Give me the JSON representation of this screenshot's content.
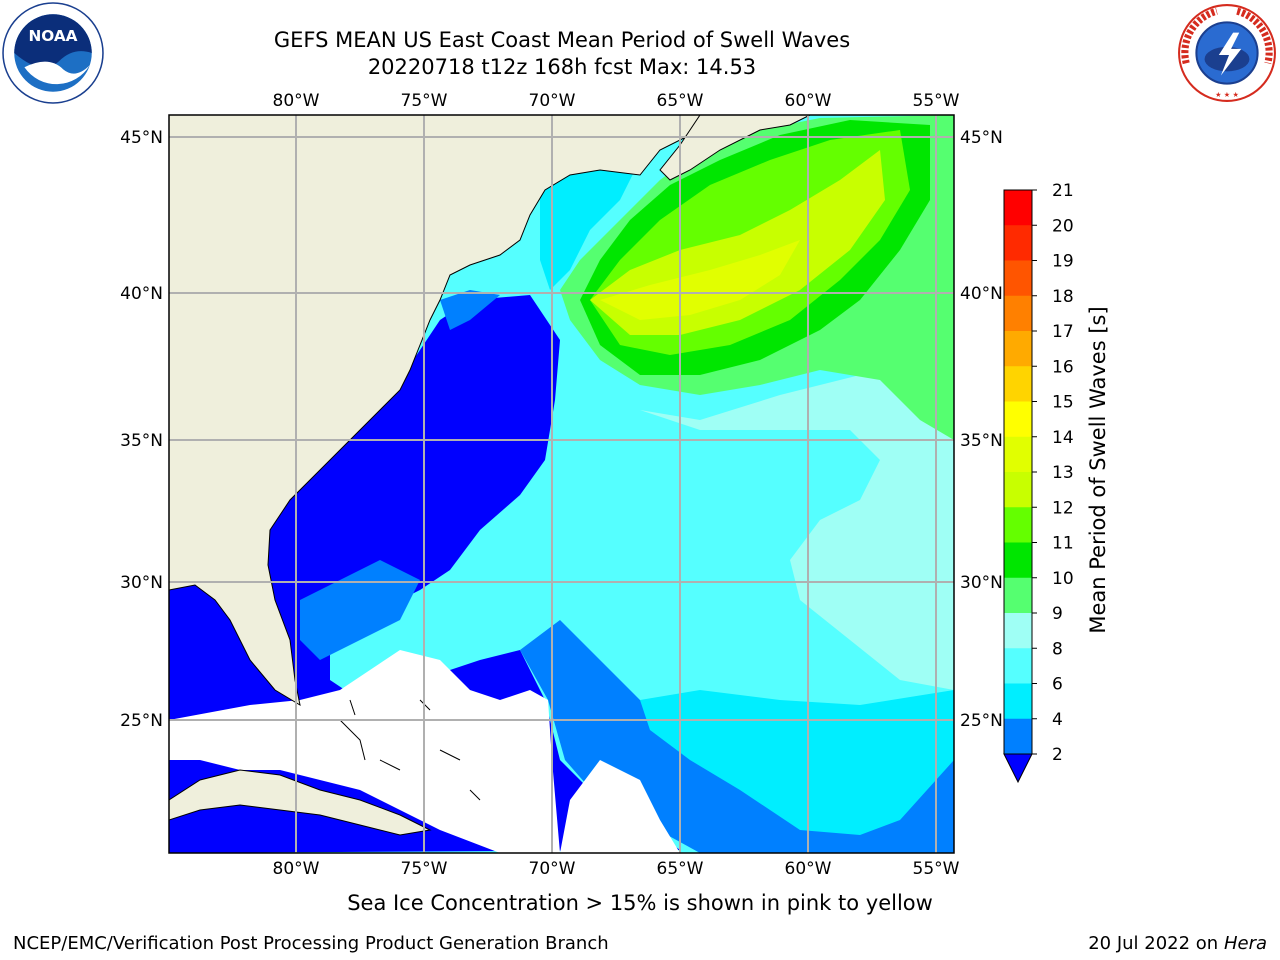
{
  "title": {
    "line1": "GEFS MEAN US East Coast Mean Period of Swell Waves",
    "line2": "20220718 t12z 168h fcst   Max: 14.53"
  },
  "logos": {
    "left": "noaa-logo",
    "right": "national-weather-service-logo",
    "left_text": "NOAA",
    "left_ring_text": "NATIONAL OCEANIC AND ATMOSPHERIC ADMINISTRATION · U.S. DEPARTMENT OF COMMERCE",
    "right_ring_text": "NATIONAL WEATHER SERVICE"
  },
  "map": {
    "lon_ticks": [
      "80°W",
      "75°W",
      "70°W",
      "65°W",
      "60°W",
      "55°W"
    ],
    "lat_ticks": [
      "45°N",
      "40°N",
      "35°N",
      "30°N",
      "25°N"
    ],
    "land_color": "#efefdc",
    "grid_color": "#b0b0b0"
  },
  "colorbar": {
    "label": "Mean Period of Swell Waves [s]",
    "ticks": [
      "21",
      "20",
      "19",
      "18",
      "17",
      "16",
      "15",
      "14",
      "13",
      "12",
      "11",
      "10",
      "9",
      "8",
      "6",
      "4",
      "2"
    ],
    "colors": [
      "#ff0000",
      "#ff2a00",
      "#ff5500",
      "#ff8000",
      "#ffaa00",
      "#ffd400",
      "#ffff00",
      "#e1ff00",
      "#c8ff00",
      "#64ff00",
      "#00e600",
      "#55ff70",
      "#9ffff5",
      "#55ffff",
      "#00eeff",
      "#0080ff",
      "#0000ff"
    ]
  },
  "caption": "Sea Ice Concentration > 15% is shown in pink to yellow",
  "footer": {
    "left": "NCEP/EMC/Verification Post Processing Product Generation Branch",
    "right_prefix": "20 Jul 2022 on ",
    "right_host": "Hera"
  }
}
